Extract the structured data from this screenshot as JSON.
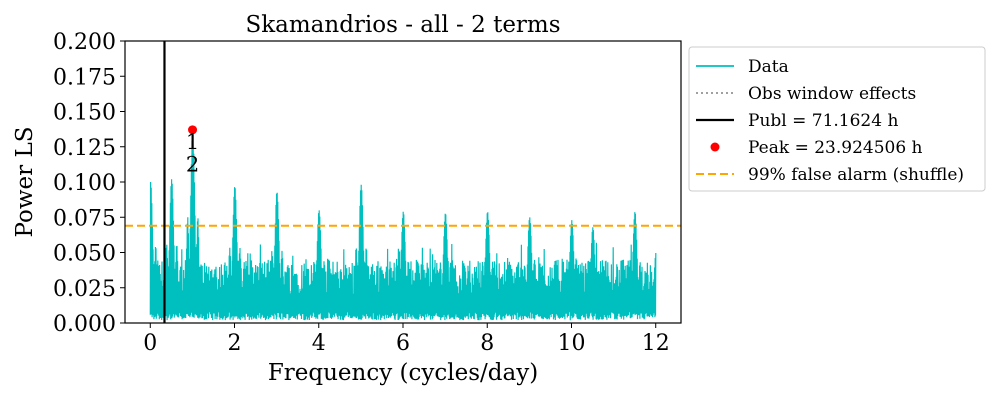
{
  "chart_data": {
    "type": "line",
    "title": "Skamandrios - all - 2 terms",
    "xlabel": "Frequency (cycles/day)",
    "ylabel": "Power LS",
    "xlim": [
      -0.6,
      12.6
    ],
    "ylim": [
      0.0,
      0.2
    ],
    "xticks": [
      "0",
      "2",
      "4",
      "6",
      "8",
      "10",
      "12"
    ],
    "yticks": [
      "0.000",
      "0.025",
      "0.050",
      "0.075",
      "0.100",
      "0.125",
      "0.150",
      "0.175",
      "0.200"
    ],
    "grid": false,
    "legend_position": "outside-right",
    "series": [
      {
        "name": "Data",
        "color": "#00bfbf",
        "style": "solid",
        "freq_range": [
          0.0,
          12.0
        ],
        "noise_band": [
          0.02,
          0.045
        ],
        "major_peaks": [
          {
            "x": 0.0,
            "y": 0.1
          },
          {
            "x": 0.5,
            "y": 0.102
          },
          {
            "x": 1.0,
            "y": 0.137
          },
          {
            "x": 2.0,
            "y": 0.097
          },
          {
            "x": 3.0,
            "y": 0.093
          },
          {
            "x": 4.0,
            "y": 0.08
          },
          {
            "x": 5.0,
            "y": 0.098
          },
          {
            "x": 6.0,
            "y": 0.079
          },
          {
            "x": 7.0,
            "y": 0.078
          },
          {
            "x": 8.0,
            "y": 0.079
          },
          {
            "x": 9.0,
            "y": 0.075
          },
          {
            "x": 10.0,
            "y": 0.073
          },
          {
            "x": 10.5,
            "y": 0.068
          },
          {
            "x": 11.5,
            "y": 0.079
          },
          {
            "x": 12.0,
            "y": 0.05
          }
        ]
      },
      {
        "name": "Obs window effects",
        "color": "#808080",
        "style": "dotted",
        "values": []
      },
      {
        "name": "Publ = 71.1624 h",
        "color": "#000000",
        "style": "solid",
        "x": 0.3373
      },
      {
        "name": "Peak = 23.924506 h",
        "color": "#ff0000",
        "style": "point",
        "x": 1.0032,
        "y": 0.137
      },
      {
        "name": "99% false alarm (shuffle)",
        "color": "#ffa500",
        "style": "dashed",
        "y": 0.069
      }
    ],
    "annotations": [
      {
        "text": "1",
        "x": 1.0032,
        "y": 0.129
      },
      {
        "text": "2",
        "x": 1.0032,
        "y": 0.113
      }
    ]
  }
}
